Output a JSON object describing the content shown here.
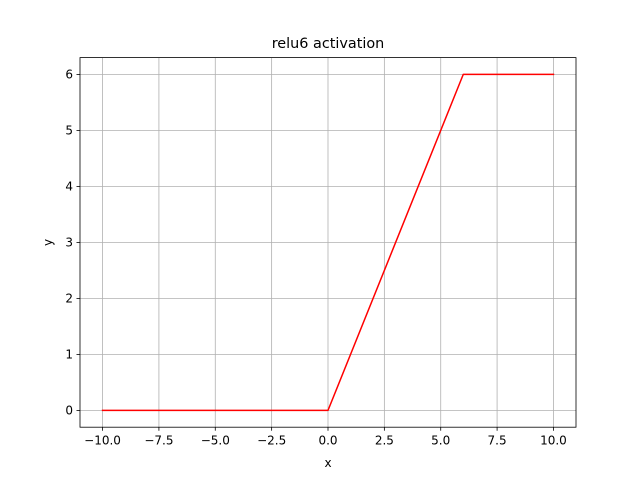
{
  "chart_data": {
    "type": "line",
    "title": "relu6 activation",
    "xlabel": "x",
    "ylabel": "y",
    "xlim": [
      -11.0,
      11.0
    ],
    "ylim": [
      -0.3,
      6.3
    ],
    "grid": true,
    "xticks": [
      -10.0,
      -7.5,
      -5.0,
      -2.5,
      0.0,
      2.5,
      5.0,
      7.5,
      10.0
    ],
    "xtick_labels": [
      "−10.0",
      "−7.5",
      "−5.0",
      "−2.5",
      "0.0",
      "2.5",
      "5.0",
      "7.5",
      "10.0"
    ],
    "yticks": [
      0,
      1,
      2,
      3,
      4,
      5,
      6
    ],
    "ytick_labels": [
      "0",
      "1",
      "2",
      "3",
      "4",
      "5",
      "6"
    ],
    "series": [
      {
        "name": "relu6",
        "color": "#ff0000",
        "x": [
          -10.0,
          0.0,
          6.0,
          10.0
        ],
        "y": [
          0.0,
          0.0,
          6.0,
          6.0
        ]
      }
    ]
  }
}
